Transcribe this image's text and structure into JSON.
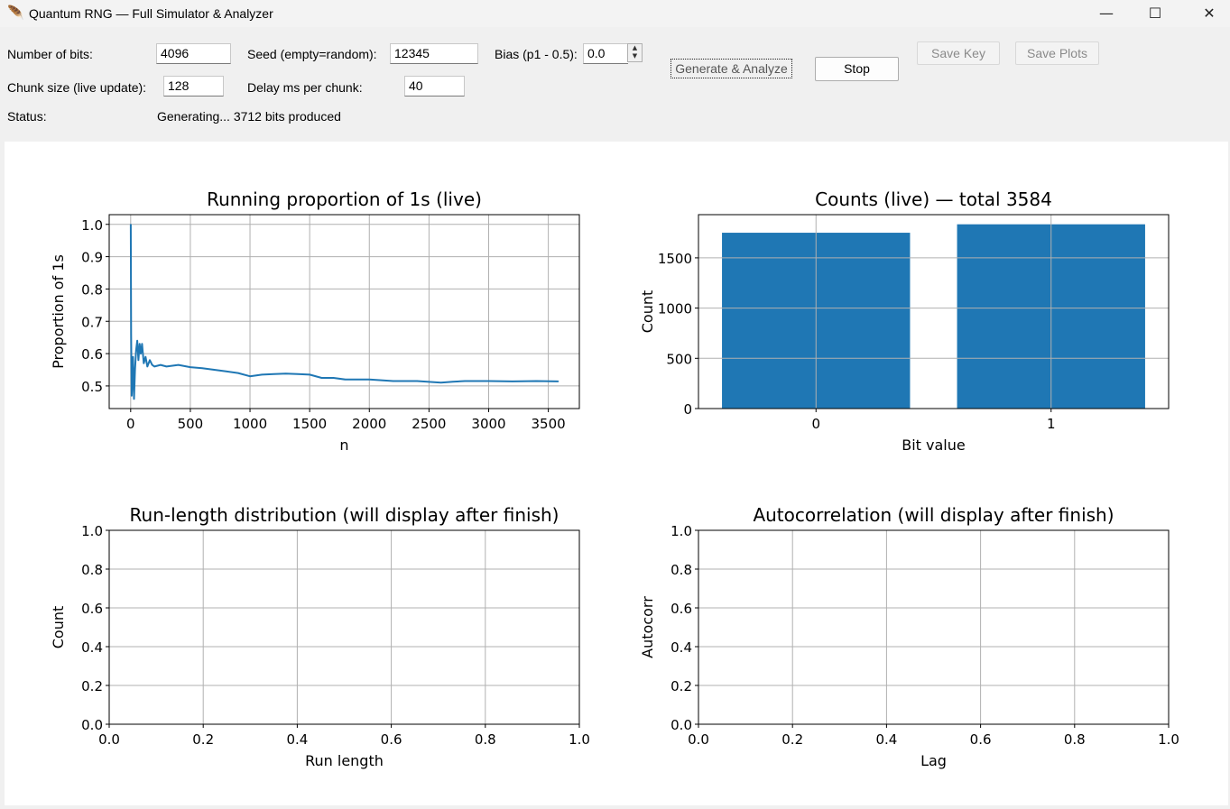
{
  "window": {
    "title": "Quantum RNG — Full Simulator & Analyzer",
    "minimize_glyph": "—",
    "maximize_glyph": "☐",
    "close_glyph": "✕"
  },
  "controls": {
    "num_bits_label": "Number of bits:",
    "num_bits_value": "4096",
    "seed_label": "Seed (empty=random):",
    "seed_value": "12345",
    "bias_label": "Bias (p1 - 0.5):",
    "bias_value": "0.0",
    "chunk_label": "Chunk size (live update):",
    "chunk_value": "128",
    "delay_label": "Delay ms per chunk:",
    "delay_value": "40",
    "status_label": "Status:",
    "status_value": "Generating... 3712 bits produced"
  },
  "buttons": {
    "generate": "Generate & Analyze",
    "stop": "Stop",
    "save_key": "Save Key",
    "save_plots": "Save Plots"
  },
  "colors": {
    "series": "#1f77b4",
    "grid": "#b0b0b0"
  },
  "chart_data": [
    {
      "type": "line",
      "title": "Running proportion of 1s (live)",
      "xlabel": "n",
      "ylabel": "Proportion of 1s",
      "xlim": [
        -180,
        3760
      ],
      "ylim": [
        0.43,
        1.03
      ],
      "xticks": [
        0,
        500,
        1000,
        1500,
        2000,
        2500,
        3000,
        3500
      ],
      "yticks": [
        0.5,
        0.6,
        0.7,
        0.8,
        0.9,
        1.0
      ],
      "ytick_labels": [
        "0.5",
        "0.6",
        "0.7",
        "0.8",
        "0.9",
        "1.0"
      ],
      "grid": true,
      "x": [
        1,
        4,
        8,
        12,
        20,
        28,
        36,
        45,
        55,
        65,
        75,
        85,
        95,
        110,
        125,
        140,
        160,
        180,
        200,
        250,
        300,
        400,
        500,
        600,
        700,
        800,
        900,
        1000,
        1100,
        1200,
        1300,
        1400,
        1500,
        1600,
        1700,
        1800,
        1900,
        2000,
        2200,
        2400,
        2600,
        2700,
        2800,
        3000,
        3200,
        3400,
        3584
      ],
      "values": [
        1.0,
        0.66,
        0.47,
        0.5,
        0.59,
        0.46,
        0.55,
        0.61,
        0.64,
        0.58,
        0.63,
        0.6,
        0.63,
        0.57,
        0.59,
        0.56,
        0.58,
        0.565,
        0.56,
        0.565,
        0.56,
        0.565,
        0.558,
        0.555,
        0.55,
        0.545,
        0.54,
        0.53,
        0.535,
        0.537,
        0.538,
        0.537,
        0.535,
        0.525,
        0.525,
        0.52,
        0.52,
        0.52,
        0.515,
        0.515,
        0.51,
        0.513,
        0.515,
        0.515,
        0.514,
        0.515,
        0.514
      ]
    },
    {
      "type": "bar",
      "title": "Counts (live) — total 3584",
      "xlabel": "Bit value",
      "ylabel": "Count",
      "categories": [
        "0",
        "1"
      ],
      "values": [
        1750,
        1834
      ],
      "ylim": [
        0,
        1930
      ],
      "yticks": [
        0,
        500,
        1000,
        1500
      ],
      "grid": true
    },
    {
      "type": "line",
      "title": "Run-length distribution (will display after finish)",
      "xlabel": "Run length",
      "ylabel": "Count",
      "xlim": [
        0,
        1
      ],
      "ylim": [
        0,
        1
      ],
      "xticks": [
        0,
        0.2,
        0.4,
        0.6,
        0.8,
        1.0
      ],
      "xtick_labels": [
        "0.0",
        "0.2",
        "0.4",
        "0.6",
        "0.8",
        "1.0"
      ],
      "yticks": [
        0,
        0.2,
        0.4,
        0.6,
        0.8,
        1.0
      ],
      "ytick_labels": [
        "0.0",
        "0.2",
        "0.4",
        "0.6",
        "0.8",
        "1.0"
      ],
      "grid": true,
      "x": [],
      "values": []
    },
    {
      "type": "line",
      "title": "Autocorrelation (will display after finish)",
      "xlabel": "Lag",
      "ylabel": "Autocorr",
      "xlim": [
        0,
        1
      ],
      "ylim": [
        0,
        1
      ],
      "xticks": [
        0,
        0.2,
        0.4,
        0.6,
        0.8,
        1.0
      ],
      "xtick_labels": [
        "0.0",
        "0.2",
        "0.4",
        "0.6",
        "0.8",
        "1.0"
      ],
      "yticks": [
        0,
        0.2,
        0.4,
        0.6,
        0.8,
        1.0
      ],
      "ytick_labels": [
        "0.0",
        "0.2",
        "0.4",
        "0.6",
        "0.8",
        "1.0"
      ],
      "grid": true,
      "x": [],
      "values": []
    }
  ]
}
